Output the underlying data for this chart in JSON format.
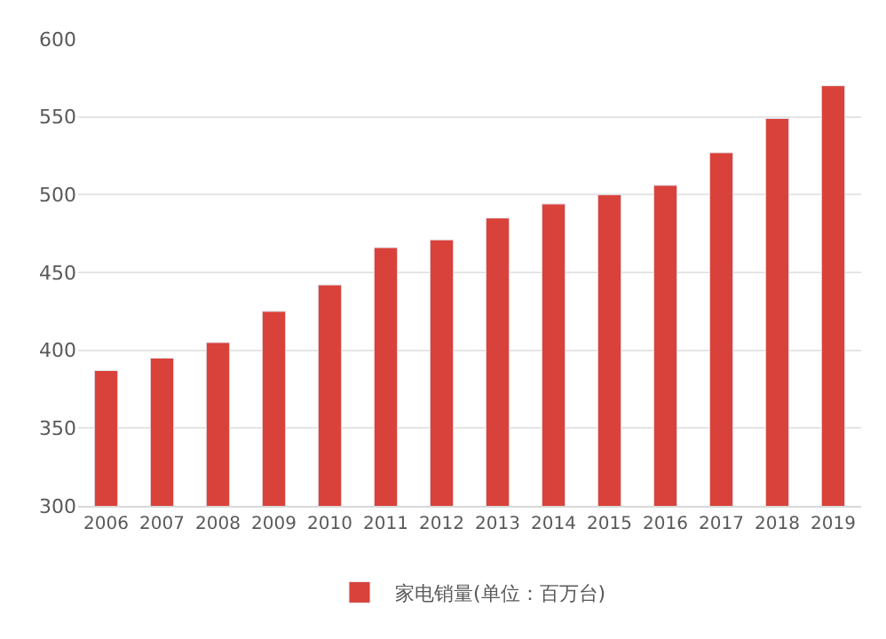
{
  "chart_data": {
    "type": "bar",
    "categories": [
      "2006",
      "2007",
      "2008",
      "2009",
      "2010",
      "2011",
      "2012",
      "2013",
      "2014",
      "2015",
      "2016",
      "2017",
      "2018",
      "2019"
    ],
    "series": [
      {
        "name": "家电销量(单位：百万台)",
        "color": "#d9423a",
        "values": [
          387,
          395,
          405,
          425,
          442,
          466,
          471,
          485,
          494,
          500,
          506,
          527,
          549,
          570
        ]
      }
    ],
    "ylim": [
      300,
      600
    ],
    "yticks": [
      300,
      350,
      400,
      450,
      500,
      550,
      600
    ],
    "grid": "y",
    "legend": "bottom"
  }
}
